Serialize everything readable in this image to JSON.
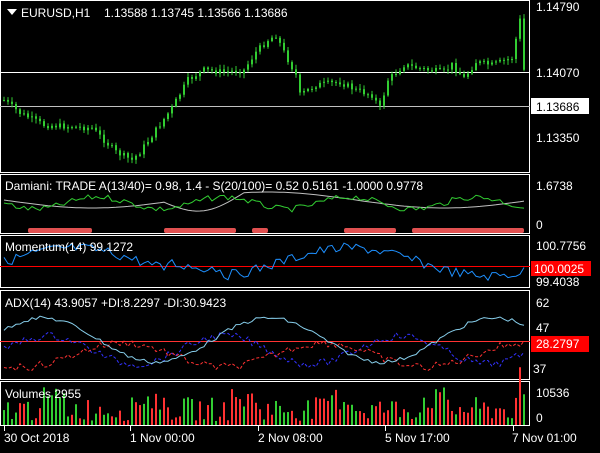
{
  "chart_header": {
    "symbol": "EURUSD,H1",
    "ohlc": "1.13588 1.13745 1.13566 1.13686"
  },
  "price_axis": {
    "ticks": [
      "1.14790",
      "1.14070",
      "1.13350"
    ],
    "current": "1.13686"
  },
  "damiani": {
    "label": "Damiani: TRADE  A(13/40)= 0.98, 1.4 - S(20/100)= 0.52  0.5161 -1.0000 0.9778",
    "ticks": [
      "1.6738",
      "0"
    ]
  },
  "momentum": {
    "label": "Momentum(14) 99.1272",
    "ticks": [
      "100.7756",
      "99.4038"
    ],
    "level": "100.0025"
  },
  "adx": {
    "label": "ADX(14) 43.9057 +DI:8.2297 -DI:30.9423",
    "ticks": [
      "62",
      "47",
      "37"
    ],
    "current": "28.2797"
  },
  "volumes": {
    "label": "Volumes 2955",
    "ticks": [
      "10536",
      "0"
    ]
  },
  "time_axis": [
    "30 Oct 2018",
    "1 Nov 00:00",
    "2 Nov 08:00",
    "5 Nov 17:00",
    "7 Nov 01:00"
  ],
  "colors": {
    "background": "#000000",
    "grid": "#ffffff",
    "candle": "#32cd32",
    "momentum": "#1e90ff",
    "momentum_level": "#ff0000",
    "adx": "#87ceeb",
    "plus_di": "#3232ff",
    "minus_di": "#ff3232",
    "volume_up": "#32cd32",
    "volume_down": "#ff3232",
    "damiani_fast": "#32cd32",
    "damiani_slow": "#c0c0c0",
    "damiani_blocks": "#e05050",
    "current_price_bg": "#ffffff",
    "level_bg": "#ff0000"
  },
  "icons": {
    "menu": "triangle-down-icon"
  }
}
